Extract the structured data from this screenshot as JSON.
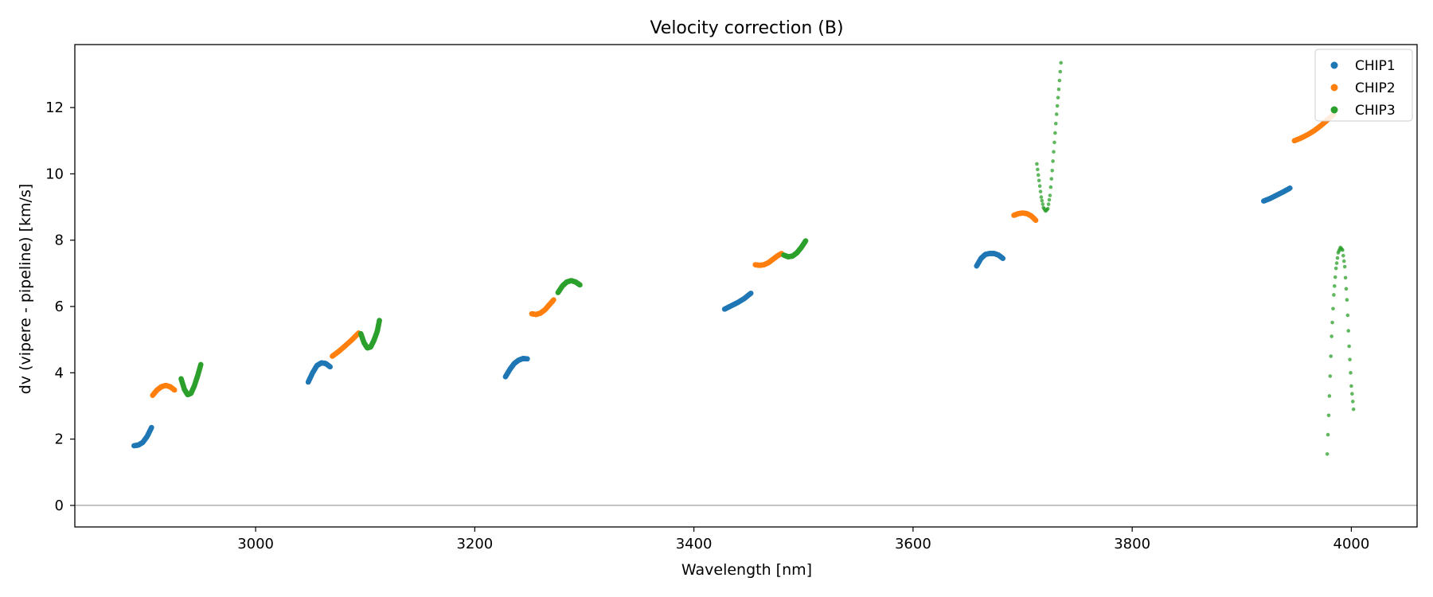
{
  "chart_data": {
    "type": "scatter",
    "title": "Velocity correction (B)",
    "xlabel": "Wavelength [nm]",
    "ylabel": "dv (vipere - pipeline) [km/s]",
    "xlim": [
      2835,
      4060
    ],
    "ylim": [
      -0.65,
      13.9
    ],
    "xticks": [
      3000,
      3200,
      3400,
      3600,
      3800,
      4000
    ],
    "yticks": [
      0,
      2,
      4,
      6,
      8,
      10,
      12
    ],
    "hline": 0,
    "legend_position": "top-right",
    "series": [
      {
        "name": "CHIP1",
        "color": "#1f77b4",
        "segments": [
          {
            "x": [
              2889,
              2893,
              2897,
              2901,
              2905
            ],
            "y": [
              1.8,
              1.82,
              1.9,
              2.08,
              2.35
            ]
          },
          {
            "x": [
              3048,
              3052,
              3056,
              3060,
              3064,
              3068
            ],
            "y": [
              3.72,
              4.0,
              4.22,
              4.3,
              4.28,
              4.18
            ]
          },
          {
            "x": [
              3228,
              3232,
              3236,
              3240,
              3244,
              3248
            ],
            "y": [
              3.88,
              4.1,
              4.28,
              4.38,
              4.43,
              4.42
            ]
          },
          {
            "x": [
              3428,
              3434,
              3440,
              3446,
              3452
            ],
            "y": [
              5.92,
              6.02,
              6.12,
              6.24,
              6.4
            ]
          },
          {
            "x": [
              3658,
              3662,
              3666,
              3670,
              3674,
              3678,
              3682
            ],
            "y": [
              7.22,
              7.45,
              7.57,
              7.6,
              7.6,
              7.55,
              7.45
            ]
          },
          {
            "x": [
              3920,
              3926,
              3932,
              3938,
              3944
            ],
            "y": [
              9.18,
              9.26,
              9.36,
              9.46,
              9.57
            ]
          }
        ]
      },
      {
        "name": "CHIP2",
        "color": "#ff7f0e",
        "segments": [
          {
            "x": [
              2906,
              2910,
              2914,
              2918,
              2922,
              2926
            ],
            "y": [
              3.32,
              3.48,
              3.58,
              3.62,
              3.58,
              3.48
            ]
          },
          {
            "x": [
              3070,
              3076,
              3082,
              3088,
              3094
            ],
            "y": [
              4.5,
              4.65,
              4.82,
              5.0,
              5.2
            ]
          },
          {
            "x": [
              3252,
              3256,
              3260,
              3264,
              3268,
              3272
            ],
            "y": [
              5.78,
              5.76,
              5.8,
              5.9,
              6.05,
              6.2
            ]
          },
          {
            "x": [
              3456,
              3460,
              3464,
              3468,
              3472,
              3476,
              3480
            ],
            "y": [
              7.26,
              7.24,
              7.26,
              7.32,
              7.42,
              7.52,
              7.6
            ]
          },
          {
            "x": [
              3692,
              3696,
              3700,
              3704,
              3708,
              3712
            ],
            "y": [
              8.75,
              8.8,
              8.82,
              8.8,
              8.73,
              8.6
            ]
          },
          {
            "x": [
              3948,
              3954,
              3960,
              3966,
              3972,
              3978,
              3984
            ],
            "y": [
              11.0,
              11.08,
              11.18,
              11.3,
              11.45,
              11.62,
              11.8
            ]
          }
        ]
      },
      {
        "name": "CHIP3",
        "color": "#2ca02c",
        "segments": [
          {
            "x": [
              2932,
              2935,
              2938,
              2941,
              2944,
              2947,
              2950
            ],
            "y": [
              3.82,
              3.5,
              3.34,
              3.38,
              3.6,
              3.9,
              4.25
            ]
          },
          {
            "x": [
              3096,
              3099,
              3102,
              3105,
              3108,
              3111,
              3113
            ],
            "y": [
              5.18,
              4.9,
              4.75,
              4.78,
              4.98,
              5.25,
              5.58
            ]
          },
          {
            "x": [
              3276,
              3280,
              3284,
              3288,
              3292,
              3296
            ],
            "y": [
              6.42,
              6.62,
              6.74,
              6.78,
              6.74,
              6.65
            ]
          },
          {
            "x": [
              3482,
              3486,
              3490,
              3494,
              3498,
              3502
            ],
            "y": [
              7.55,
              7.5,
              7.52,
              7.62,
              7.78,
              7.98
            ]
          }
        ],
        "sparse_segments": [
          {
            "x": [
              3713,
              3715,
              3717,
              3719,
              3721,
              3723,
              3725,
              3727,
              3729,
              3731,
              3733,
              3735
            ],
            "y": [
              10.3,
              9.8,
              9.3,
              8.98,
              8.88,
              8.95,
              9.35,
              10.1,
              10.95,
              11.8,
              12.55,
              13.35
            ]
          },
          {
            "x": [
              3978,
              3980,
              3982,
              3984,
              3986,
              3988,
              3990,
              3992,
              3994,
              3996,
              3998,
              4000,
              4002
            ],
            "y": [
              1.55,
              3.3,
              5.1,
              6.35,
              7.15,
              7.62,
              7.78,
              7.7,
              7.2,
              6.2,
              4.8,
              3.6,
              2.9
            ]
          }
        ]
      }
    ]
  }
}
